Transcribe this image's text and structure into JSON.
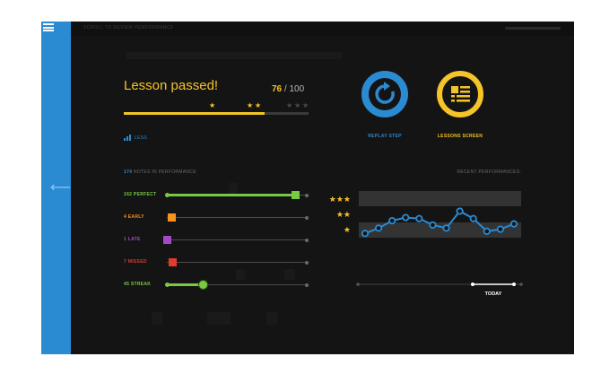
{
  "header": {
    "breadcrumb": "Scroll to review performance"
  },
  "lesson": {
    "title": "Lesson passed!",
    "score": "76",
    "total": "/ 100",
    "progress_fraction": 0.76,
    "stars_earned": 3,
    "stars_total": 6
  },
  "toggle": {
    "label": "LESS"
  },
  "actions": {
    "replay_label": "REPLAY STEP",
    "lessons_label": "LESSONS SCREEN"
  },
  "performance": {
    "notes_count": "174",
    "notes_suffix": "NOTES IN PERFORMANCE",
    "recent_label": "RECENT PERFORMANCES:"
  },
  "stats": [
    {
      "label": "162 PERFECT",
      "color": "#7ac943",
      "fraction": 0.92
    },
    {
      "label": "4 EARLY",
      "color": "#f7931e",
      "fraction": 0.03
    },
    {
      "label": "1 LATE",
      "color": "#a349c8",
      "fraction": 0.0
    },
    {
      "label": "7 MISSED",
      "color": "#e23b2e",
      "fraction": 0.04
    },
    {
      "label": "45 STREAK",
      "color": "#7ac943",
      "fraction": 0.26
    }
  ],
  "graph": {
    "star_rows": [
      "★★★",
      "★★",
      "★"
    ],
    "today_label": "TODAY",
    "points": [
      1,
      1.25,
      1.6,
      1.75,
      1.7,
      1.4,
      1.25,
      2.05,
      1.7,
      1.1,
      1.2,
      1.45
    ],
    "line_color": "#2a8ad2",
    "star_color": "#f4c428"
  },
  "colors": {
    "accent_blue": "#2a8ad2",
    "accent_yellow": "#f4c428",
    "background": "#141414"
  },
  "icons": {
    "menu": "hamburger-icon",
    "back": "arrow-left-icon",
    "replay": "replay-icon",
    "lessons": "list-icon"
  }
}
